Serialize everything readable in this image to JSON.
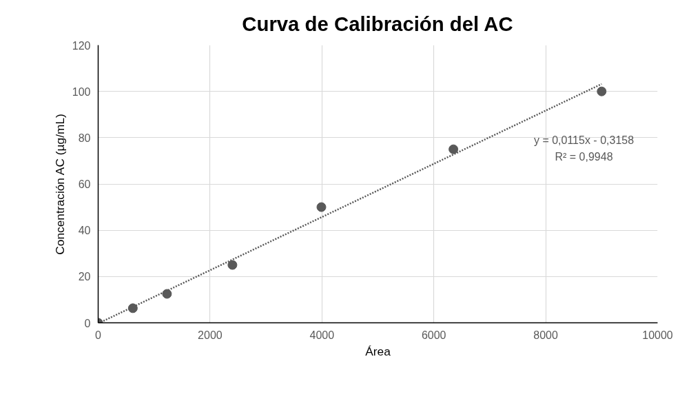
{
  "chart_data": {
    "type": "scatter",
    "title": "Curva de Calibración del AC",
    "xlabel": "Área",
    "ylabel": "Concentración AC (µg/mL)",
    "xlim": [
      0,
      10000
    ],
    "xticks": [
      0,
      2000,
      4000,
      6000,
      8000,
      10000
    ],
    "ylim": [
      0,
      120
    ],
    "yticks": [
      0,
      20,
      40,
      60,
      80,
      100,
      120
    ],
    "grid": true,
    "marker": "circle",
    "series": [
      {
        "color": "#595959",
        "x": [
          0,
          620,
          1230,
          2400,
          3990,
          6350,
          9000
        ],
        "values": [
          0,
          6.3,
          12.5,
          25,
          50,
          75,
          100
        ]
      },
      {
        "type": "line",
        "color": "#595959",
        "line_style": "dotted",
        "marker": "none",
        "x": [
          50,
          9000
        ],
        "values": [
          0.3,
          103.2
        ]
      }
    ],
    "annotations": [
      "y = 0,0115x - 0,3158",
      "R² = 0,9948"
    ]
  }
}
